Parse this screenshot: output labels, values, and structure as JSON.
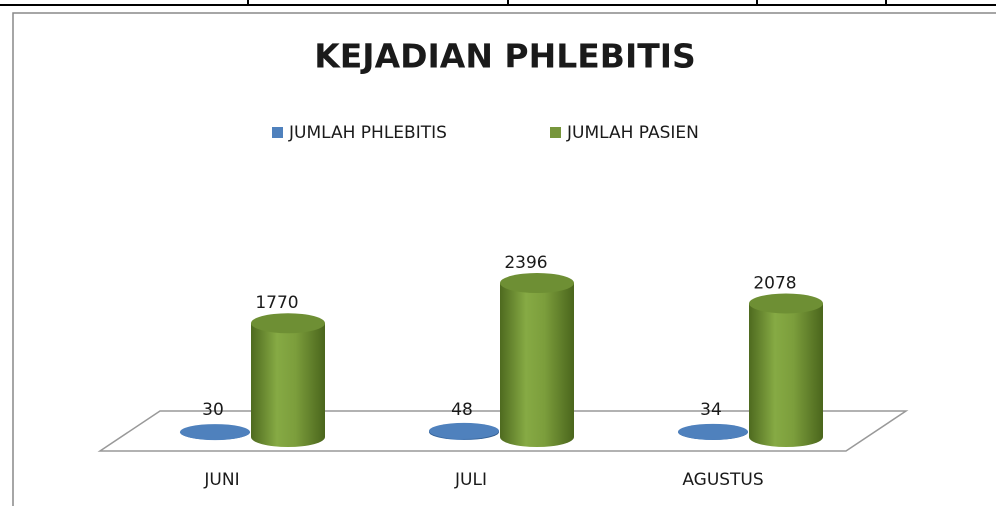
{
  "chart_data": {
    "type": "bar3d",
    "title": "KEJADIAN PHLEBITIS",
    "categories": [
      "JUNI",
      "JULI",
      "AGUSTUS"
    ],
    "series": [
      {
        "name": "JUMLAH PHLEBITIS",
        "color": "#4f81bd",
        "values": [
          30,
          48,
          34
        ]
      },
      {
        "name": "JUMLAH PASIEN",
        "color": "#77963c",
        "values": [
          1770,
          2396,
          2078
        ]
      }
    ],
    "legend": "top"
  }
}
